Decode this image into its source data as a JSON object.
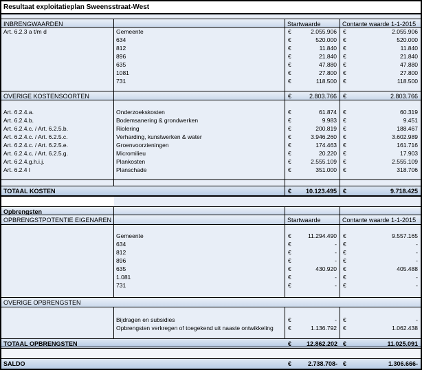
{
  "title": "Resultaat exploitatieplan Sweensstraat-West",
  "currency": "€",
  "col_headers": {
    "start": "Startwaarde",
    "contant": "Contante waarde 1-1-2015"
  },
  "inbreng": {
    "header": "INBRENGWAARDEN",
    "rows": [
      {
        "art": "Art. 6.2.3 a t/m d",
        "label": "Gemeente",
        "start": "2.055.906",
        "contant": "2.055.906"
      },
      {
        "art": "",
        "label": "634",
        "start": "520.000",
        "contant": "520.000"
      },
      {
        "art": "",
        "label": "812",
        "start": "11.840",
        "contant": "11.840"
      },
      {
        "art": "",
        "label": "896",
        "start": "21.840",
        "contant": "21.840"
      },
      {
        "art": "",
        "label": "635",
        "start": "47.880",
        "contant": "47.880"
      },
      {
        "art": "",
        "label": "1081",
        "start": "27.800",
        "contant": "27.800"
      },
      {
        "art": "",
        "label": "731",
        "start": "118.500",
        "contant": "118.500"
      }
    ]
  },
  "overige_kosten": {
    "header": "OVERIGE KOSTENSOORTEN",
    "start": "2.803.766",
    "contant": "2.803.766",
    "rows": [
      {
        "art": "Art. 6.2.4.a.",
        "label": "Onderzoekskosten",
        "start": "61.874",
        "contant": "60.319"
      },
      {
        "art": "Art. 6.2.4.b.",
        "label": "Bodemsanering & grondwerken",
        "start": "9.983",
        "contant": "9.451"
      },
      {
        "art": "Art. 6.2.4.c. / Art. 6.2.5.b.",
        "label": "Riolering",
        "start": "200.819",
        "contant": "188.467"
      },
      {
        "art": "Art. 6.2.4.c. / Art. 6.2.5.c.",
        "label": "Verharding, kunstwerken & water",
        "start": "3.946.260",
        "contant": "3.602.989"
      },
      {
        "art": "Art. 6.2.4.c. / Art. 6.2.5.e.",
        "label": "Groenvoorzieningen",
        "start": "174.463",
        "contant": "161.716"
      },
      {
        "art": "Art. 6.2.4.c. / Art. 6.2.5.g.",
        "label": "Micromilieu",
        "start": "20.220",
        "contant": "17.903"
      },
      {
        "art": "Art. 6.2.4.g.h.i.j.",
        "label": "Plankosten",
        "start": "2.555.109",
        "contant": "2.555.109"
      },
      {
        "art": "Art. 6.2.4 l",
        "label": "Planschade",
        "start": "351.000",
        "contant": "318.706"
      }
    ]
  },
  "totaal_kosten": {
    "label": "TOTAAL KOSTEN",
    "start": "10.123.495",
    "contant": "9.718.425"
  },
  "opbrengsten_label": "Opbrengsten",
  "potentie": {
    "header": "OPBRENGSTPOTENTIE EIGENAREN",
    "rows": [
      {
        "label": "Gemeente",
        "start": "11.294.490",
        "contant": "9.557.165"
      },
      {
        "label": "634",
        "start": "-",
        "contant": "-"
      },
      {
        "label": "812",
        "start": "-",
        "contant": "-"
      },
      {
        "label": "896",
        "start": "-",
        "contant": "-"
      },
      {
        "label": "635",
        "start": "430.920",
        "contant": "405.488"
      },
      {
        "label": "1.081",
        "start": "-",
        "contant": "-"
      },
      {
        "label": "731",
        "start": "-",
        "contant": "-"
      }
    ]
  },
  "overige_opbrengsten": {
    "header": "OVERIGE OPBRENGSTEN",
    "rows": [
      {
        "label": "Bijdragen en subsidies",
        "start": "-",
        "contant": "-"
      },
      {
        "label": "Opbrengsten verkregen of toegekend uit naaste ontwikkeling",
        "start": "1.136.792",
        "contant": "1.062.438"
      }
    ]
  },
  "totaal_opbrengsten": {
    "label": "TOTAAL OPBRENGSTEN",
    "start": "12.862.202",
    "contant": "11.025.091"
  },
  "saldo": {
    "label": "SALDO",
    "start": "2.738.708-",
    "contant": "1.306.666-"
  }
}
